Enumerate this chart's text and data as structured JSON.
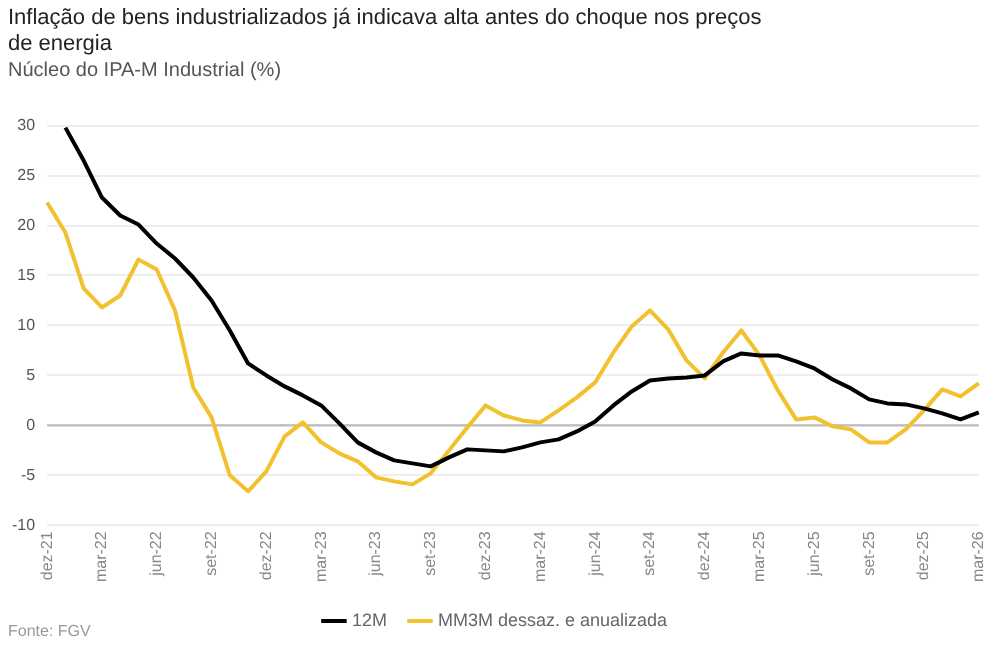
{
  "chart_data": {
    "type": "line",
    "title": "Inflação de bens industrializados já indicava alta antes do choque nos preços de energia",
    "subtitle": "Núcleo do IPA-M Industrial (%)",
    "categories": [
      "dez-21",
      null,
      null,
      "mar-22",
      null,
      null,
      "jun-22",
      null,
      null,
      "set-22",
      null,
      null,
      "dez-22",
      null,
      null,
      "mar-23",
      null,
      null,
      "jun-23",
      null,
      null,
      "set-23",
      null,
      null,
      "dez-23",
      null,
      null,
      "mar-24",
      null,
      null,
      "jun-24",
      null,
      null,
      "set-24",
      null,
      null,
      "dez-24",
      null,
      null,
      "mar-25",
      null,
      null,
      "jun-25",
      null,
      null,
      "set-25",
      null,
      null,
      "dez-25",
      null,
      null,
      "mar-26"
    ],
    "series": [
      {
        "name": "12M",
        "color": "#000000",
        "values": [
          null,
          29.8,
          26.5,
          22.8,
          21,
          20.1,
          18.2,
          16.7,
          14.8,
          12.5,
          9.5,
          6.2,
          5.0,
          3.9,
          3.0,
          2.0,
          0.2,
          -1.7,
          -2.7,
          -3.5,
          -3.8,
          -4.1,
          -3.2,
          -2.4,
          -2.5,
          -2.6,
          -2.2,
          -1.7,
          -1.4,
          -0.6,
          0.4,
          2.0,
          3.4,
          4.5,
          4.7,
          4.8,
          5.0,
          6.4,
          7.2,
          7.0,
          7.0,
          6.4,
          5.7,
          4.6,
          3.7,
          2.6,
          2.2,
          2.1,
          1.7,
          1.2,
          0.6,
          1.3
        ]
      },
      {
        "name": "MM3M dessaz. e anualizada",
        "color": "#f2c12e",
        "values": [
          22.3,
          19.3,
          13.7,
          11.8,
          13.0,
          16.6,
          15.6,
          11.5,
          3.8,
          0.8,
          -5.0,
          -6.6,
          -4.6,
          -1.1,
          0.3,
          -1.7,
          -2.8,
          -3.6,
          -5.2,
          -5.6,
          -5.9,
          -4.8,
          -2.5,
          -0.2,
          2.0,
          1.0,
          0.5,
          0.3,
          1.5,
          2.8,
          4.3,
          7.3,
          9.9,
          11.5,
          9.6,
          6.5,
          4.7,
          7.3,
          9.5,
          7.0,
          3.5,
          0.6,
          0.8,
          -0.1,
          -0.4,
          -1.7,
          -1.7,
          -0.4,
          1.5,
          3.6,
          2.9,
          4.2
        ]
      }
    ],
    "ylim": [
      -10,
      30
    ],
    "yticks": [
      -10,
      -5,
      0,
      5,
      10,
      15,
      20,
      25,
      30
    ],
    "grid": "y",
    "legend": "bottom",
    "marker": "none",
    "line_style": "solid",
    "annotations": [
      "Fonte: FGV"
    ]
  }
}
